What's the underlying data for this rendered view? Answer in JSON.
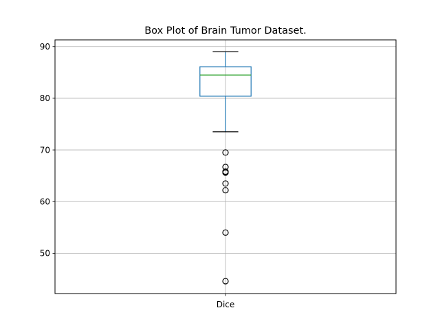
{
  "chart_data": {
    "type": "box",
    "title": "Box Plot of Brain Tumor Dataset.",
    "xlabel": "",
    "ylabel": "",
    "categories": [
      "Dice"
    ],
    "ylim": [
      42.2,
      91.3
    ],
    "yticks": [
      50,
      60,
      70,
      80,
      90
    ],
    "grid": true,
    "boxes": [
      {
        "category": "Dice",
        "whisker_low": 73.5,
        "q1": 80.4,
        "median": 84.5,
        "q3": 86.1,
        "whisker_high": 89.0,
        "outliers": [
          69.5,
          66.7,
          65.8,
          65.6,
          63.5,
          62.2,
          54.0,
          44.6
        ]
      }
    ],
    "colors": {
      "box": "#1f77b4",
      "median": "#2ca02c",
      "cap": "#000000",
      "grid": "#b0b0b0",
      "outlier_edge": "#000000"
    }
  }
}
